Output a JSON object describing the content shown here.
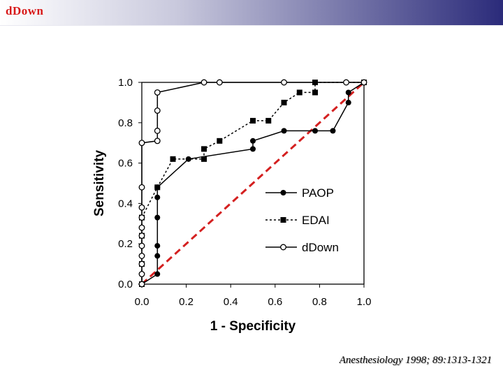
{
  "slide": {
    "title": "dDown",
    "citation": "Anesthesiology 1998; 89:1313-1321"
  },
  "colors": {
    "reference_line": "#d42020",
    "series": "#000000",
    "title": "#d81818"
  },
  "chart_data": {
    "type": "line",
    "title": "",
    "xlabel": "1 - Specificity",
    "ylabel": "Sensitivity",
    "xlim": [
      0,
      1
    ],
    "ylim": [
      0,
      1
    ],
    "xticks": [
      "0.0",
      "0.2",
      "0.4",
      "0.6",
      "0.8",
      "1.0"
    ],
    "yticks": [
      "0.0",
      "0.2",
      "0.4",
      "0.6",
      "0.8",
      "1.0"
    ],
    "grid": false,
    "legend_position": "center-right",
    "reference_line": {
      "name": "chance",
      "points": [
        [
          0,
          0
        ],
        [
          1,
          1
        ]
      ]
    },
    "series": [
      {
        "name": "PAOP",
        "marker": "filled-circle",
        "line": "solid",
        "points": [
          [
            0,
            0
          ],
          [
            0.07,
            0.05
          ],
          [
            0.07,
            0.14
          ],
          [
            0.07,
            0.19
          ],
          [
            0.07,
            0.33
          ],
          [
            0.07,
            0.43
          ],
          [
            0.07,
            0.48
          ],
          [
            0.21,
            0.62
          ],
          [
            0.5,
            0.67
          ],
          [
            0.5,
            0.71
          ],
          [
            0.64,
            0.76
          ],
          [
            0.78,
            0.76
          ],
          [
            0.86,
            0.76
          ],
          [
            0.93,
            0.9
          ],
          [
            0.93,
            0.95
          ],
          [
            1,
            1
          ]
        ]
      },
      {
        "name": "EDAI",
        "marker": "filled-square",
        "line": "dotted",
        "points": [
          [
            0,
            0
          ],
          [
            0,
            0.1
          ],
          [
            0,
            0.24
          ],
          [
            0,
            0.33
          ],
          [
            0.07,
            0.48
          ],
          [
            0.14,
            0.62
          ],
          [
            0.28,
            0.62
          ],
          [
            0.28,
            0.67
          ],
          [
            0.35,
            0.71
          ],
          [
            0.5,
            0.81
          ],
          [
            0.57,
            0.81
          ],
          [
            0.64,
            0.9
          ],
          [
            0.71,
            0.95
          ],
          [
            0.78,
            0.95
          ],
          [
            0.78,
            1
          ],
          [
            1,
            1
          ]
        ]
      },
      {
        "name": "dDown",
        "marker": "open-circle",
        "line": "solid",
        "points": [
          [
            0,
            0
          ],
          [
            0,
            0.05
          ],
          [
            0,
            0.1
          ],
          [
            0,
            0.14
          ],
          [
            0,
            0.19
          ],
          [
            0,
            0.24
          ],
          [
            0,
            0.28
          ],
          [
            0,
            0.33
          ],
          [
            0,
            0.38
          ],
          [
            0,
            0.48
          ],
          [
            0,
            0.7
          ],
          [
            0.07,
            0.71
          ],
          [
            0.07,
            0.76
          ],
          [
            0.07,
            0.86
          ],
          [
            0.07,
            0.95
          ],
          [
            0.28,
            1
          ],
          [
            0.35,
            1
          ],
          [
            0.64,
            1
          ],
          [
            0.92,
            1
          ],
          [
            1,
            1
          ]
        ]
      }
    ]
  }
}
